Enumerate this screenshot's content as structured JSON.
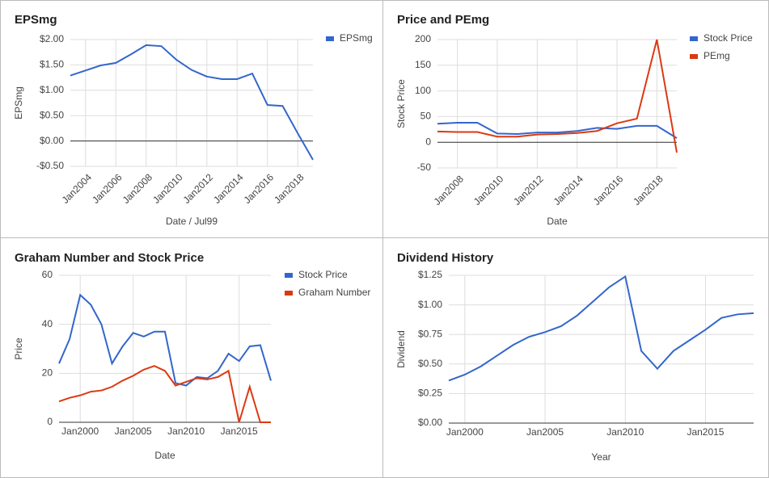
{
  "chart_data": [
    {
      "type": "line",
      "title": "EPSmg",
      "xlabel": "Date / Jul99",
      "ylabel": "EPSmg",
      "legend": "right",
      "grid": true,
      "xtick_rotation": 45,
      "x": [
        2003,
        2004,
        2005,
        2006,
        2007,
        2008,
        2009,
        2010,
        2011,
        2012,
        2013,
        2014,
        2015,
        2016,
        2017,
        2018,
        2019
      ],
      "xlim": [
        2003,
        2019
      ],
      "xticks": [
        {
          "value": 2004,
          "label": "Jan2004"
        },
        {
          "value": 2006,
          "label": "Jan2006"
        },
        {
          "value": 2008,
          "label": "Jan2008"
        },
        {
          "value": 2010,
          "label": "Jan2010"
        },
        {
          "value": 2012,
          "label": "Jan2012"
        },
        {
          "value": 2014,
          "label": "Jan2014"
        },
        {
          "value": 2016,
          "label": "Jan2016"
        },
        {
          "value": 2018,
          "label": "Jan2018"
        }
      ],
      "ylim": [
        -0.5,
        2
      ],
      "yticks": [
        {
          "value": -0.5,
          "label": "-$0.50"
        },
        {
          "value": 0,
          "label": "$0.00"
        },
        {
          "value": 0.5,
          "label": "$0.50"
        },
        {
          "value": 1,
          "label": "$1.00"
        },
        {
          "value": 1.5,
          "label": "$1.50"
        },
        {
          "value": 2,
          "label": "$2.00"
        }
      ],
      "series": [
        {
          "name": "EPSmg",
          "color": "#3366cc",
          "values": [
            1.29,
            1.39,
            1.49,
            1.54,
            1.71,
            1.89,
            1.87,
            1.6,
            1.4,
            1.27,
            1.22,
            1.22,
            1.33,
            0.71,
            0.69,
            0.15,
            -0.37
          ]
        }
      ]
    },
    {
      "type": "line",
      "title": "Price and PEmg",
      "xlabel": "Date",
      "ylabel": "Stock Price",
      "legend": "right",
      "grid": true,
      "xtick_rotation": 45,
      "x": [
        2007,
        2008,
        2009,
        2010,
        2011,
        2012,
        2013,
        2014,
        2015,
        2016,
        2017,
        2018,
        2019
      ],
      "xlim": [
        2007,
        2019
      ],
      "xticks": [
        {
          "value": 2008,
          "label": "Jan2008"
        },
        {
          "value": 2010,
          "label": "Jan2010"
        },
        {
          "value": 2012,
          "label": "Jan2012"
        },
        {
          "value": 2014,
          "label": "Jan2014"
        },
        {
          "value": 2016,
          "label": "Jan2016"
        },
        {
          "value": 2018,
          "label": "Jan2018"
        }
      ],
      "ylim": [
        -50,
        200
      ],
      "yticks": [
        -50,
        0,
        50,
        100,
        150,
        200
      ],
      "series": [
        {
          "name": "Stock Price",
          "color": "#3366cc",
          "values": [
            36,
            38,
            38,
            17,
            16,
            19,
            19,
            22,
            28,
            26,
            32,
            32,
            8
          ]
        },
        {
          "name": "PEmg",
          "color": "#dc3912",
          "values": [
            21,
            20,
            20,
            11,
            11,
            15,
            16,
            18,
            22,
            37,
            46,
            200,
            -20
          ]
        }
      ]
    },
    {
      "type": "line",
      "title": "Graham Number and Stock Price",
      "xlabel": "Date",
      "ylabel": "Price",
      "legend": "right",
      "grid": true,
      "x": [
        1998,
        1999,
        2000,
        2001,
        2002,
        2003,
        2004,
        2005,
        2006,
        2007,
        2008,
        2009,
        2010,
        2011,
        2012,
        2013,
        2014,
        2015,
        2016,
        2017,
        2018
      ],
      "xlim": [
        1998,
        2018
      ],
      "xticks": [
        {
          "value": 2000,
          "label": "Jan2000"
        },
        {
          "value": 2005,
          "label": "Jan2005"
        },
        {
          "value": 2010,
          "label": "Jan2010"
        },
        {
          "value": 2015,
          "label": "Jan2015"
        }
      ],
      "ylim": [
        0,
        60
      ],
      "yticks": [
        0,
        20,
        40,
        60
      ],
      "series": [
        {
          "name": "Stock Price",
          "color": "#3366cc",
          "values": [
            24,
            34,
            52,
            48,
            40,
            24,
            31,
            36.5,
            35,
            37,
            37,
            16,
            15,
            18.5,
            18,
            21,
            28,
            25,
            31,
            31.5,
            17
          ]
        },
        {
          "name": "Graham Number",
          "color": "#dc3912",
          "values": [
            8.5,
            10,
            11,
            12.5,
            13,
            14.5,
            17,
            19,
            21.5,
            23,
            21,
            15,
            16.5,
            18,
            17.5,
            18.5,
            21,
            0,
            14.5,
            0,
            0
          ]
        }
      ]
    },
    {
      "type": "line",
      "title": "Dividend History",
      "xlabel": "Year",
      "ylabel": "Dividend",
      "grid": true,
      "color": "#3366cc",
      "x": [
        1999,
        2000,
        2001,
        2002,
        2003,
        2004,
        2005,
        2006,
        2007,
        2008,
        2009,
        2010,
        2011,
        2012,
        2013,
        2014,
        2015,
        2016,
        2017,
        2018
      ],
      "xlim": [
        1999,
        2018
      ],
      "xticks": [
        {
          "value": 2000,
          "label": "Jan2000"
        },
        {
          "value": 2005,
          "label": "Jan2005"
        },
        {
          "value": 2010,
          "label": "Jan2010"
        },
        {
          "value": 2015,
          "label": "Jan2015"
        }
      ],
      "ylim": [
        0,
        1.25
      ],
      "yticks": [
        {
          "value": 0,
          "label": "$0.00"
        },
        {
          "value": 0.25,
          "label": "$0.25"
        },
        {
          "value": 0.5,
          "label": "$0.50"
        },
        {
          "value": 0.75,
          "label": "$0.75"
        },
        {
          "value": 1,
          "label": "$1.00"
        },
        {
          "value": 1.25,
          "label": "$1.25"
        }
      ],
      "values": [
        0.36,
        0.41,
        0.48,
        0.57,
        0.66,
        0.73,
        0.77,
        0.82,
        0.91,
        1.03,
        1.15,
        1.24,
        0.61,
        0.46,
        0.61,
        0.7,
        0.79,
        0.89,
        0.92,
        0.93
      ]
    }
  ]
}
